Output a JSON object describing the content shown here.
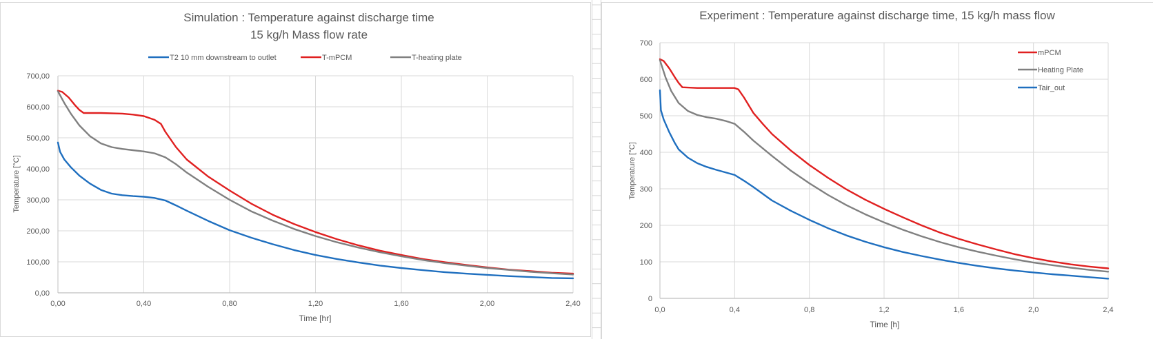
{
  "chart_data": [
    {
      "type": "line",
      "title": "Simulation : Temperature against discharge time",
      "subtitle": "15 kg/h Mass flow rate",
      "xlabel": "Time [hr]",
      "ylabel": "Temperature [°C]",
      "xlim": [
        0,
        2.4
      ],
      "ylim": [
        0,
        700
      ],
      "xticks": [
        0,
        0.4,
        0.8,
        1.2,
        1.6,
        2.0,
        2.4
      ],
      "xtick_labels": [
        "0,00",
        "0,40",
        "0,80",
        "1,20",
        "1,60",
        "2,00",
        "2,40"
      ],
      "yticks": [
        0,
        100,
        200,
        300,
        400,
        500,
        600,
        700
      ],
      "ytick_labels": [
        "0,00",
        "100,00",
        "200,00",
        "300,00",
        "400,00",
        "500,00",
        "600,00",
        "700,00"
      ],
      "grid": true,
      "legend_position": "top",
      "series": [
        {
          "name": "T2 10 mm downstream to outlet",
          "color": "#1f6fbf",
          "x": [
            0,
            0.01,
            0.03,
            0.06,
            0.1,
            0.15,
            0.2,
            0.25,
            0.3,
            0.35,
            0.4,
            0.45,
            0.5,
            0.55,
            0.6,
            0.7,
            0.8,
            0.9,
            1.0,
            1.1,
            1.2,
            1.3,
            1.4,
            1.5,
            1.6,
            1.7,
            1.8,
            1.9,
            2.0,
            2.1,
            2.2,
            2.3,
            2.4
          ],
          "y": [
            485,
            455,
            430,
            405,
            378,
            352,
            332,
            320,
            315,
            312,
            310,
            306,
            298,
            282,
            265,
            232,
            202,
            178,
            157,
            138,
            122,
            109,
            98,
            88,
            80,
            73,
            67,
            62,
            58,
            54,
            51,
            48,
            47
          ]
        },
        {
          "name": "T-mPCM",
          "color": "#e02020",
          "x": [
            0,
            0.02,
            0.05,
            0.08,
            0.1,
            0.12,
            0.2,
            0.3,
            0.35,
            0.4,
            0.45,
            0.48,
            0.5,
            0.55,
            0.6,
            0.7,
            0.8,
            0.9,
            1.0,
            1.1,
            1.2,
            1.3,
            1.4,
            1.5,
            1.6,
            1.7,
            1.8,
            1.9,
            2.0,
            2.1,
            2.2,
            2.3,
            2.4
          ],
          "y": [
            652,
            648,
            630,
            605,
            590,
            580,
            580,
            578,
            575,
            570,
            558,
            545,
            520,
            470,
            430,
            375,
            330,
            288,
            252,
            222,
            196,
            173,
            153,
            136,
            122,
            109,
            99,
            90,
            82,
            75,
            70,
            65,
            62
          ]
        },
        {
          "name": "T-heating plate",
          "color": "#808080",
          "x": [
            0,
            0.03,
            0.06,
            0.1,
            0.15,
            0.2,
            0.25,
            0.3,
            0.35,
            0.4,
            0.45,
            0.5,
            0.55,
            0.6,
            0.7,
            0.8,
            0.9,
            1.0,
            1.1,
            1.2,
            1.3,
            1.4,
            1.5,
            1.6,
            1.7,
            1.8,
            1.9,
            2.0,
            2.1,
            2.2,
            2.3,
            2.4
          ],
          "y": [
            650,
            612,
            578,
            540,
            505,
            482,
            470,
            464,
            460,
            456,
            450,
            437,
            415,
            388,
            342,
            300,
            263,
            233,
            206,
            183,
            163,
            146,
            131,
            118,
            106,
            96,
            88,
            80,
            74,
            68,
            63,
            59
          ]
        }
      ]
    },
    {
      "type": "line",
      "title": "Experiment : Temperature against discharge time, 15 kg/h mass flow",
      "xlabel": "Time [h]",
      "ylabel": "Temperature [°C]",
      "xlim": [
        0,
        2.4
      ],
      "ylim": [
        0,
        700
      ],
      "xticks": [
        0,
        0.4,
        0.8,
        1.2,
        1.6,
        2.0,
        2.4
      ],
      "xtick_labels": [
        "0,0",
        "0,4",
        "0,8",
        "1,2",
        "1,6",
        "2,0",
        "2,4"
      ],
      "yticks": [
        0,
        100,
        200,
        300,
        400,
        500,
        600,
        700
      ],
      "ytick_labels": [
        "0",
        "100",
        "200",
        "300",
        "400",
        "500",
        "600",
        "700"
      ],
      "grid": true,
      "legend_position": "top-right",
      "series": [
        {
          "name": "mPCM",
          "color": "#e02020",
          "x": [
            0,
            0.02,
            0.05,
            0.08,
            0.1,
            0.12,
            0.2,
            0.3,
            0.4,
            0.42,
            0.45,
            0.5,
            0.55,
            0.6,
            0.7,
            0.8,
            0.9,
            1.0,
            1.1,
            1.2,
            1.3,
            1.4,
            1.5,
            1.6,
            1.7,
            1.8,
            1.9,
            2.0,
            2.1,
            2.2,
            2.3,
            2.4
          ],
          "y": [
            655,
            650,
            630,
            605,
            590,
            578,
            576,
            576,
            576,
            572,
            550,
            508,
            478,
            450,
            405,
            365,
            330,
            298,
            270,
            245,
            222,
            200,
            180,
            163,
            148,
            134,
            121,
            110,
            101,
            93,
            87,
            82
          ]
        },
        {
          "name": "Heating Plate",
          "color": "#808080",
          "x": [
            0,
            0.03,
            0.06,
            0.1,
            0.15,
            0.2,
            0.25,
            0.3,
            0.35,
            0.4,
            0.45,
            0.5,
            0.6,
            0.7,
            0.8,
            0.9,
            1.0,
            1.1,
            1.2,
            1.3,
            1.4,
            1.5,
            1.6,
            1.7,
            1.8,
            1.9,
            2.0,
            2.1,
            2.2,
            2.3,
            2.4
          ],
          "y": [
            652,
            605,
            568,
            535,
            513,
            502,
            496,
            492,
            486,
            478,
            456,
            432,
            390,
            350,
            315,
            283,
            255,
            230,
            208,
            188,
            170,
            154,
            140,
            128,
            117,
            107,
            98,
            91,
            84,
            78,
            73
          ]
        },
        {
          "name": "Tair_out",
          "color": "#1f6fbf",
          "x": [
            0,
            0.005,
            0.02,
            0.05,
            0.08,
            0.1,
            0.15,
            0.2,
            0.25,
            0.3,
            0.35,
            0.4,
            0.45,
            0.5,
            0.6,
            0.7,
            0.8,
            0.9,
            1.0,
            1.1,
            1.2,
            1.3,
            1.4,
            1.5,
            1.6,
            1.7,
            1.8,
            1.9,
            2.0,
            2.1,
            2.2,
            2.3,
            2.4
          ],
          "y": [
            570,
            515,
            490,
            455,
            425,
            408,
            385,
            370,
            360,
            352,
            345,
            338,
            322,
            305,
            268,
            240,
            215,
            192,
            172,
            155,
            140,
            127,
            116,
            106,
            97,
            89,
            82,
            76,
            71,
            66,
            62,
            58,
            54
          ]
        }
      ]
    }
  ]
}
